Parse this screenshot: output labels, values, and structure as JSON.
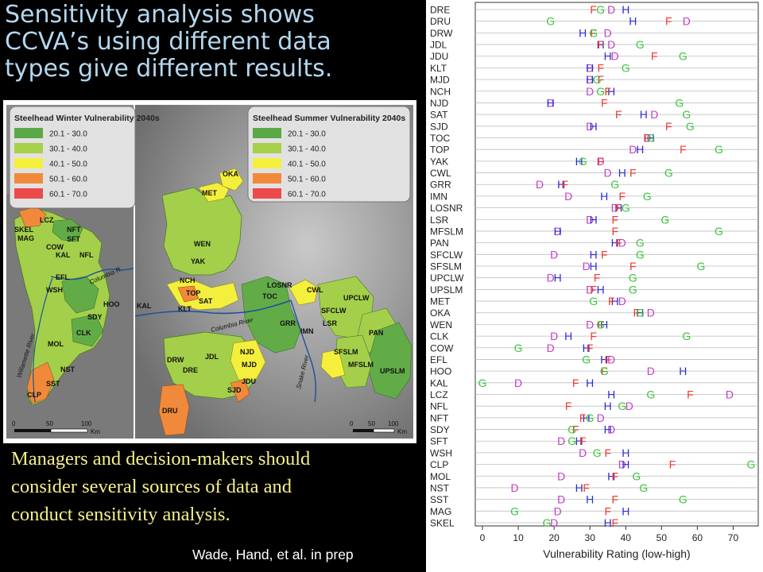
{
  "title": {
    "lines": [
      "Sensitivity analysis shows",
      "CCVA’s using different data",
      "types give different results."
    ]
  },
  "body_text": {
    "lines": [
      "Managers and decision-makers should",
      "consider several sources of data and",
      "conduct sensitivity analysis."
    ]
  },
  "citation": "Wade, Hand, et al. in prep",
  "colors": {
    "title": "#b3d7ef",
    "body": "#f6f08a",
    "background": "#000000",
    "D": "#c13ec1",
    "H": "#2b2bd6",
    "F": "#f2362e",
    "G": "#39c639"
  },
  "map": {
    "legend_winter": {
      "title": "Steelhead Winter Vulnerability 2040s",
      "items": [
        "20.1 - 30.0",
        "30.1 - 40.0",
        "40.1 - 50.0",
        "50.1 - 60.0",
        "60.1 - 70.0"
      ]
    },
    "legend_summer": {
      "title": "Steelhead Summer Vulnerability 2040s",
      "items": [
        "20.1 - 30.0",
        "30.1 - 40.0",
        "40.1 - 50.0",
        "50.1 - 60.0",
        "60.1 - 70.0"
      ]
    },
    "legend_colors": [
      "#5aa846",
      "#a6d14a",
      "#f4ef3c",
      "#f08a3a",
      "#ec4a4a"
    ],
    "winter_labels": [
      "LCZ",
      "SKEL",
      "MAG",
      "NFT",
      "SFT",
      "COW",
      "KAL",
      "NFL",
      "EFL",
      "WSH",
      "HOO",
      "SDY",
      "CLK",
      "MOL",
      "NST",
      "SST",
      "CLP"
    ],
    "summer_labels": [
      "OKA",
      "MET",
      "WEN",
      "YAK",
      "NCH",
      "TOP",
      "SAT",
      "KLT",
      "KAL",
      "LOSNR",
      "TOC",
      "CWL",
      "UPCLW",
      "SFCLW",
      "LSR",
      "GRR",
      "IMN",
      "PAN",
      "NJD",
      "MJD",
      "JDL",
      "DRW",
      "DRE",
      "JDU",
      "SJD",
      "SFSLM",
      "MFSLM",
      "UPSLM",
      "DRU"
    ],
    "rivers": [
      "Columbia R.",
      "Willamette River",
      "Columbia River",
      "Snake River"
    ],
    "scale_winter": [
      "0",
      "50",
      "100",
      "Km"
    ],
    "scale_summer": [
      "0",
      "50",
      "100",
      "Km"
    ]
  },
  "chart_data": {
    "type": "scatter",
    "title": "",
    "xlabel": "Vulnerability Rating (low-high)",
    "ylabel": "",
    "xlim": [
      -2,
      77
    ],
    "xticks": [
      0,
      10,
      20,
      30,
      40,
      50,
      60,
      70
    ],
    "grid": true,
    "marker_letters": [
      "D",
      "H",
      "F",
      "G"
    ],
    "rows": [
      {
        "label": "DRE",
        "D": 36,
        "H": 40,
        "F": 31,
        "G": 33
      },
      {
        "label": "DRU",
        "D": 57,
        "H": 42,
        "F": 52,
        "G": 19
      },
      {
        "label": "DRW",
        "D": 35,
        "H": 28,
        "F": 31,
        "G": 31
      },
      {
        "label": "JDL",
        "D": 36,
        "H": 33,
        "F": 33,
        "G": 44
      },
      {
        "label": "JDU",
        "D": 37,
        "H": 35,
        "F": 48,
        "G": 56
      },
      {
        "label": "KLT",
        "D": 30,
        "H": 30,
        "F": 33,
        "G": 40
      },
      {
        "label": "MJD",
        "D": 30,
        "H": 30,
        "F": 33,
        "G": 32
      },
      {
        "label": "NCH",
        "D": 30,
        "H": 36,
        "F": 35,
        "G": 33
      },
      {
        "label": "NJD",
        "D": 19,
        "H": 19,
        "F": 34,
        "G": 55
      },
      {
        "label": "SAT",
        "D": 48,
        "H": 45,
        "F": 38,
        "G": 57
      },
      {
        "label": "SJD",
        "D": 30,
        "H": 31,
        "F": 52,
        "G": 58
      },
      {
        "label": "TOC",
        "D": 46,
        "H": 47,
        "F": 46,
        "G": 47
      },
      {
        "label": "TOP",
        "D": 42,
        "H": 44,
        "F": 56,
        "G": 66
      },
      {
        "label": "YAK",
        "D": 33,
        "H": 27,
        "F": 33,
        "G": 28
      },
      {
        "label": "CWL",
        "D": 35,
        "H": 39,
        "F": 42,
        "G": 52
      },
      {
        "label": "GRR",
        "D": 16,
        "H": 22,
        "F": 23,
        "G": 37
      },
      {
        "label": "IMN",
        "D": 24,
        "H": 34,
        "F": 39,
        "G": 46
      },
      {
        "label": "LOSNR",
        "D": 37,
        "H": 38,
        "F": 38,
        "G": 40
      },
      {
        "label": "LSR",
        "D": 30,
        "H": 31,
        "F": 37,
        "G": 51
      },
      {
        "label": "MFSLM",
        "D": 21,
        "H": 21,
        "F": 37,
        "G": 66
      },
      {
        "label": "PAN",
        "D": 39,
        "H": 37,
        "F": 38,
        "G": 44
      },
      {
        "label": "SFCLW",
        "D": 20,
        "H": 31,
        "F": 34,
        "G": 44
      },
      {
        "label": "SFSLM",
        "D": 29,
        "H": 31,
        "F": 42,
        "G": 61
      },
      {
        "label": "UPCLW",
        "D": 19,
        "H": 21,
        "F": 32,
        "G": 42
      },
      {
        "label": "UPSLM",
        "D": 30,
        "H": 33,
        "F": 31,
        "G": 42
      },
      {
        "label": "MET",
        "D": 39,
        "H": 37,
        "F": 36,
        "G": 31
      },
      {
        "label": "OKA",
        "D": 47,
        "H": 44,
        "F": 43,
        "G": 44
      },
      {
        "label": "WEN",
        "D": 30,
        "H": 34,
        "F": 33,
        "G": 33
      },
      {
        "label": "CLK",
        "D": 20,
        "H": 24,
        "F": 31,
        "G": 57
      },
      {
        "label": "COW",
        "D": 19,
        "H": 29,
        "F": 30,
        "G": 10
      },
      {
        "label": "EFL",
        "D": 36,
        "H": 34,
        "F": 35,
        "G": 29
      },
      {
        "label": "HOO",
        "D": 47,
        "H": 56,
        "F": 34,
        "G": 34
      },
      {
        "label": "KAL",
        "D": 10,
        "H": 30,
        "F": 26,
        "G": 0
      },
      {
        "label": "LCZ",
        "D": 69,
        "H": 36,
        "F": 58,
        "G": 47
      },
      {
        "label": "NFL",
        "D": 41,
        "H": 35,
        "F": 24,
        "G": 39
      },
      {
        "label": "NFT",
        "D": 33,
        "H": 29,
        "F": 28,
        "G": 30
      },
      {
        "label": "SDY",
        "D": 36,
        "H": 35,
        "F": 26,
        "G": 25
      },
      {
        "label": "SFT",
        "D": 22,
        "H": 27,
        "F": 28,
        "G": 25
      },
      {
        "label": "WSH",
        "D": 28,
        "H": 40,
        "F": 35,
        "G": 32
      },
      {
        "label": "CLP",
        "D": 39,
        "H": 40,
        "F": 53,
        "G": 75
      },
      {
        "label": "MOL",
        "D": 22,
        "H": 36,
        "F": 37,
        "G": 43
      },
      {
        "label": "NST",
        "D": 9,
        "H": 27,
        "F": 29,
        "G": 45
      },
      {
        "label": "SST",
        "D": 22,
        "H": 30,
        "F": 37,
        "G": 56
      },
      {
        "label": "MAG",
        "D": 21,
        "H": 40,
        "F": 35,
        "G": 9
      },
      {
        "label": "SKEL",
        "D": 20,
        "H": 35,
        "F": 37,
        "G": 18
      }
    ]
  }
}
